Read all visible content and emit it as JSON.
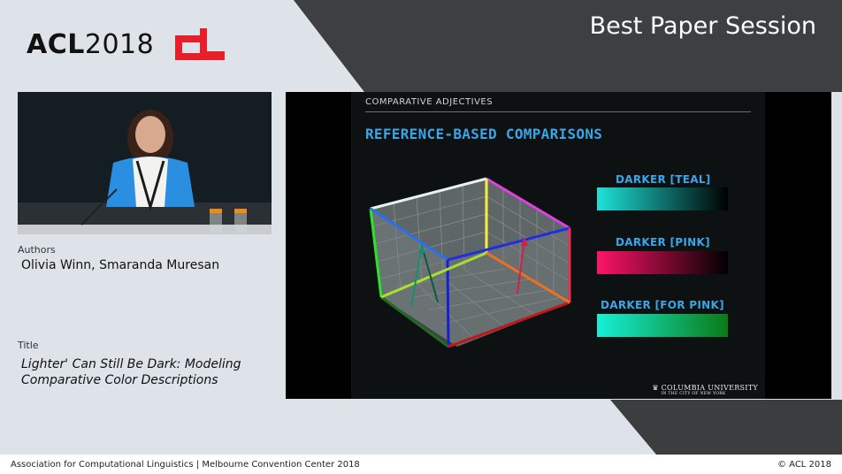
{
  "logo": {
    "text_prefix": "ACL",
    "text_year": "2018",
    "brand_color": "#e5202a"
  },
  "session": {
    "title": "Best Paper Session"
  },
  "info": {
    "authors_label": "Authors",
    "authors": "Olivia Winn, Smaranda Muresan",
    "title_label": "Title",
    "title_line1": "Lighter' Can Still Be Dark: Modeling",
    "title_line2": "Comparative Color Descriptions"
  },
  "slide": {
    "header": "COMPARATIVE ADJECTIVES",
    "title": "REFERENCE-BASED COMPARISONS",
    "gradients": [
      {
        "label": "DARKER [TEAL]",
        "from": "#1de3d8",
        "to": "#000000"
      },
      {
        "label": "DARKER [PINK]",
        "from": "#ff1466",
        "to": "#000000"
      },
      {
        "label": "DARKER [FOR PINK]",
        "from": "#17f0d8",
        "to": "#0a7a14"
      }
    ],
    "university_name": "COLUMBIA UNIVERSITY",
    "university_sub": "IN THE CITY OF NEW YORK"
  },
  "footer": {
    "left": "Association for Computational Linguistics  |  Melbourne Convention Center 2018",
    "right": "© ACL 2018"
  }
}
